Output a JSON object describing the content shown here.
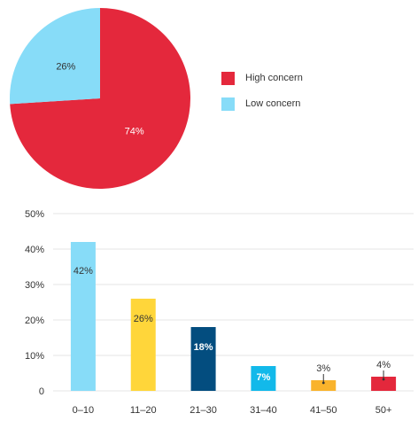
{
  "chart_data": [
    {
      "type": "pie",
      "slices": [
        {
          "label": "High concern",
          "value": 74,
          "display": "74%",
          "color": "#e4283c"
        },
        {
          "label": "Low concern",
          "value": 26,
          "display": "26%",
          "color": "#87dcf8"
        }
      ],
      "legend": "right",
      "legend_entries": [
        "High concern",
        "Low concern"
      ]
    },
    {
      "type": "bar",
      "categories": [
        "0–10",
        "11–20",
        "21–30",
        "31–40",
        "41–50",
        "50+"
      ],
      "values": [
        42,
        26,
        18,
        7,
        3,
        4
      ],
      "labels": [
        "42%",
        "26%",
        "18%",
        "7%",
        "3%",
        "4%"
      ],
      "colors": [
        "#87dcf8",
        "#ffd63a",
        "#034d7f",
        "#12b9ea",
        "#f9b32c",
        "#e4283c"
      ],
      "label_colors": [
        "#333333",
        "#333333",
        "#ffffff",
        "#ffffff",
        "#333333",
        "#333333"
      ],
      "label_outside": [
        false,
        false,
        false,
        false,
        true,
        true
      ],
      "ylim": [
        0,
        50
      ],
      "yticks": [
        0,
        10,
        20,
        30,
        40,
        50
      ],
      "ytick_labels": [
        "0",
        "10%",
        "20%",
        "30%",
        "40%",
        "50%"
      ],
      "grid": true
    }
  ]
}
